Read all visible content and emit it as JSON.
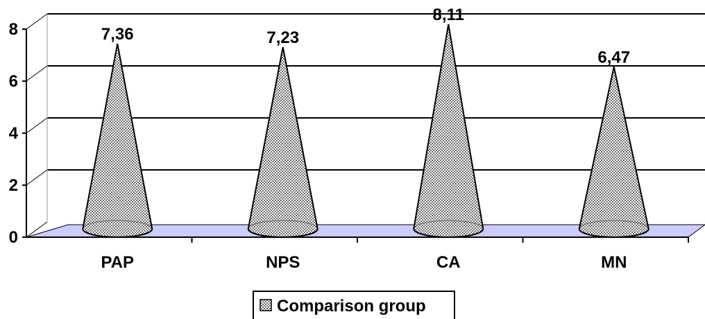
{
  "chart_data": {
    "type": "bar",
    "subtype": "3d-cone",
    "categories": [
      "PAP",
      "NPS",
      "CA",
      "MN"
    ],
    "series": [
      {
        "name": "Comparison group",
        "values": [
          7.36,
          7.23,
          8.11,
          6.47
        ]
      }
    ],
    "data_labels": [
      "7,36",
      "7,23",
      "8,11",
      "6,47"
    ],
    "ylim": [
      0,
      8
    ],
    "y_ticks": [
      0,
      2,
      4,
      6,
      8
    ],
    "y_tick_labels": [
      "0",
      "2",
      "4",
      "6",
      "8"
    ],
    "grid": true,
    "legend_position": "bottom",
    "colors": {
      "floor": "#ccccff",
      "cone_fill": "#9a9a9a",
      "grid": "#000000"
    }
  }
}
